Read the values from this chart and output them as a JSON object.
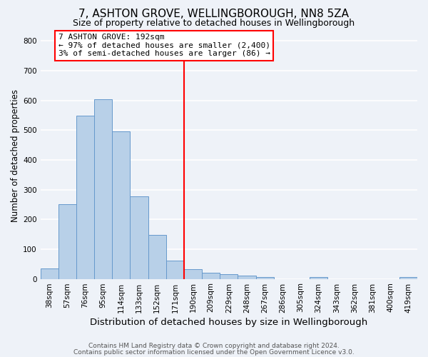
{
  "title": "7, ASHTON GROVE, WELLINGBOROUGH, NN8 5ZA",
  "subtitle": "Size of property relative to detached houses in Wellingborough",
  "xlabel": "Distribution of detached houses by size in Wellingborough",
  "ylabel": "Number of detached properties",
  "bar_labels": [
    "38sqm",
    "57sqm",
    "76sqm",
    "95sqm",
    "114sqm",
    "133sqm",
    "152sqm",
    "171sqm",
    "190sqm",
    "209sqm",
    "229sqm",
    "248sqm",
    "267sqm",
    "286sqm",
    "305sqm",
    "324sqm",
    "343sqm",
    "362sqm",
    "381sqm",
    "400sqm",
    "419sqm"
  ],
  "bar_heights": [
    35,
    250,
    548,
    605,
    495,
    278,
    148,
    62,
    32,
    20,
    15,
    10,
    5,
    0,
    0,
    5,
    0,
    0,
    0,
    0,
    5
  ],
  "bar_color": "#b8d0e8",
  "bar_edge_color": "#6699cc",
  "bar_width": 1.0,
  "vline_x": 8.0,
  "vline_color": "red",
  "ylim": [
    0,
    830
  ],
  "yticks": [
    0,
    100,
    200,
    300,
    400,
    500,
    600,
    700,
    800
  ],
  "annotation_line1": "7 ASHTON GROVE: 192sqm",
  "annotation_line2": "← 97% of detached houses are smaller (2,400)",
  "annotation_line3": "3% of semi-detached houses are larger (86) →",
  "annotation_box_color": "white",
  "annotation_box_edgecolor": "red",
  "footer_line1": "Contains HM Land Registry data © Crown copyright and database right 2024.",
  "footer_line2": "Contains public sector information licensed under the Open Government Licence v3.0.",
  "background_color": "#eef2f8",
  "grid_color": "white",
  "title_fontsize": 11,
  "subtitle_fontsize": 9,
  "xlabel_fontsize": 9.5,
  "ylabel_fontsize": 8.5,
  "tick_fontsize": 7.5,
  "annotation_fontsize": 8,
  "footer_fontsize": 6.5
}
